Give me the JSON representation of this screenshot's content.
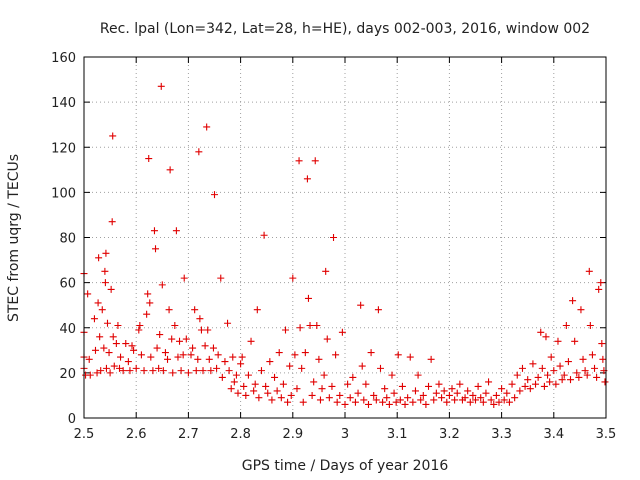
{
  "chart_data": {
    "type": "scatter",
    "title": "Rec. lpal (Lon=342, Lat=28, h=HE), days 002-003, 2016, window 002",
    "xlabel": "GPS time / Days of year 2016",
    "ylabel": "STEC from uqrg / TECUs",
    "xlim": [
      2.5,
      3.5
    ],
    "ylim": [
      0,
      160
    ],
    "x_ticks": [
      "2.5",
      "2.6",
      "2.7",
      "2.8",
      "2.9",
      "3",
      "3.1",
      "3.2",
      "3.3",
      "3.4",
      "3.5"
    ],
    "y_ticks": [
      "0",
      "20",
      "40",
      "60",
      "80",
      "100",
      "120",
      "140",
      "160"
    ],
    "grid": true,
    "marker": "+",
    "color": "#e00000",
    "series": [
      {
        "name": "STEC",
        "points": [
          [
            2.5,
            64
          ],
          [
            2.5,
            38
          ],
          [
            2.5,
            27
          ],
          [
            2.5,
            22
          ],
          [
            2.503,
            19
          ],
          [
            2.507,
            55
          ],
          [
            2.51,
            26
          ],
          [
            2.512,
            19
          ],
          [
            2.52,
            44
          ],
          [
            2.522,
            30
          ],
          [
            2.525,
            20
          ],
          [
            2.527,
            51
          ],
          [
            2.528,
            71
          ],
          [
            2.53,
            36
          ],
          [
            2.532,
            21
          ],
          [
            2.535,
            48
          ],
          [
            2.538,
            31
          ],
          [
            2.54,
            65
          ],
          [
            2.541,
            60
          ],
          [
            2.542,
            73
          ],
          [
            2.543,
            22
          ],
          [
            2.545,
            42
          ],
          [
            2.548,
            29
          ],
          [
            2.55,
            20
          ],
          [
            2.552,
            57
          ],
          [
            2.554,
            87
          ],
          [
            2.555,
            125
          ],
          [
            2.556,
            36
          ],
          [
            2.558,
            23
          ],
          [
            2.562,
            33
          ],
          [
            2.565,
            41
          ],
          [
            2.568,
            22
          ],
          [
            2.57,
            27
          ],
          [
            2.575,
            21
          ],
          [
            2.58,
            33
          ],
          [
            2.585,
            25
          ],
          [
            2.588,
            21
          ],
          [
            2.592,
            32
          ],
          [
            2.595,
            30
          ],
          [
            2.6,
            22
          ],
          [
            2.605,
            39
          ],
          [
            2.607,
            41
          ],
          [
            2.61,
            28
          ],
          [
            2.615,
            21
          ],
          [
            2.62,
            46
          ],
          [
            2.622,
            55
          ],
          [
            2.624,
            115
          ],
          [
            2.626,
            51
          ],
          [
            2.628,
            27
          ],
          [
            2.632,
            21
          ],
          [
            2.635,
            83
          ],
          [
            2.637,
            75
          ],
          [
            2.64,
            31
          ],
          [
            2.643,
            22
          ],
          [
            2.645,
            37
          ],
          [
            2.648,
            147
          ],
          [
            2.65,
            59
          ],
          [
            2.652,
            21
          ],
          [
            2.656,
            29
          ],
          [
            2.66,
            26
          ],
          [
            2.663,
            48
          ],
          [
            2.665,
            110
          ],
          [
            2.668,
            35
          ],
          [
            2.67,
            20
          ],
          [
            2.674,
            41
          ],
          [
            2.677,
            83
          ],
          [
            2.68,
            27
          ],
          [
            2.683,
            34
          ],
          [
            2.686,
            21
          ],
          [
            2.69,
            28
          ],
          [
            2.692,
            62
          ],
          [
            2.696,
            35
          ],
          [
            2.7,
            20
          ],
          [
            2.705,
            28
          ],
          [
            2.708,
            31
          ],
          [
            2.712,
            48
          ],
          [
            2.715,
            21
          ],
          [
            2.718,
            26
          ],
          [
            2.72,
            118
          ],
          [
            2.722,
            44
          ],
          [
            2.725,
            39
          ],
          [
            2.728,
            21
          ],
          [
            2.732,
            32
          ],
          [
            2.735,
            129
          ],
          [
            2.737,
            39
          ],
          [
            2.74,
            26
          ],
          [
            2.743,
            21
          ],
          [
            2.748,
            31
          ],
          [
            2.75,
            99
          ],
          [
            2.754,
            22
          ],
          [
            2.757,
            28
          ],
          [
            2.762,
            62
          ],
          [
            2.765,
            18
          ],
          [
            2.77,
            25
          ],
          [
            2.775,
            42
          ],
          [
            2.778,
            21
          ],
          [
            2.782,
            13
          ],
          [
            2.785,
            27
          ],
          [
            2.788,
            16
          ],
          [
            2.792,
            19
          ],
          [
            2.795,
            11
          ],
          [
            2.8,
            24
          ],
          [
            2.803,
            27
          ],
          [
            2.806,
            14
          ],
          [
            2.81,
            10
          ],
          [
            2.815,
            19
          ],
          [
            2.82,
            34
          ],
          [
            2.825,
            12
          ],
          [
            2.828,
            15
          ],
          [
            2.832,
            48
          ],
          [
            2.835,
            9
          ],
          [
            2.84,
            21
          ],
          [
            2.845,
            81
          ],
          [
            2.848,
            14
          ],
          [
            2.852,
            11
          ],
          [
            2.856,
            25
          ],
          [
            2.86,
            8
          ],
          [
            2.865,
            18
          ],
          [
            2.87,
            12
          ],
          [
            2.874,
            29
          ],
          [
            2.878,
            9
          ],
          [
            2.882,
            15
          ],
          [
            2.886,
            39
          ],
          [
            2.89,
            7
          ],
          [
            2.894,
            23
          ],
          [
            2.897,
            10
          ],
          [
            2.9,
            62
          ],
          [
            2.904,
            28
          ],
          [
            2.908,
            13
          ],
          [
            2.912,
            114
          ],
          [
            2.914,
            40
          ],
          [
            2.917,
            22
          ],
          [
            2.92,
            7
          ],
          [
            2.924,
            29
          ],
          [
            2.928,
            106
          ],
          [
            2.93,
            53
          ],
          [
            2.933,
            41
          ],
          [
            2.937,
            10
          ],
          [
            2.94,
            16
          ],
          [
            2.943,
            114
          ],
          [
            2.946,
            41
          ],
          [
            2.95,
            26
          ],
          [
            2.953,
            8
          ],
          [
            2.956,
            13
          ],
          [
            2.96,
            19
          ],
          [
            2.963,
            65
          ],
          [
            2.966,
            35
          ],
          [
            2.97,
            9
          ],
          [
            2.975,
            14
          ],
          [
            2.978,
            80
          ],
          [
            2.982,
            28
          ],
          [
            2.985,
            7
          ],
          [
            2.99,
            10
          ],
          [
            2.995,
            38
          ],
          [
            3.0,
            6
          ],
          [
            3.005,
            15
          ],
          [
            3.01,
            9
          ],
          [
            3.015,
            18
          ],
          [
            3.02,
            7
          ],
          [
            3.025,
            11
          ],
          [
            3.03,
            50
          ],
          [
            3.033,
            23
          ],
          [
            3.036,
            8
          ],
          [
            3.04,
            15
          ],
          [
            3.045,
            6
          ],
          [
            3.05,
            29
          ],
          [
            3.055,
            10
          ],
          [
            3.06,
            8
          ],
          [
            3.064,
            48
          ],
          [
            3.068,
            22
          ],
          [
            3.072,
            7
          ],
          [
            3.076,
            13
          ],
          [
            3.08,
            9
          ],
          [
            3.085,
            6
          ],
          [
            3.09,
            19
          ],
          [
            3.094,
            11
          ],
          [
            3.098,
            7
          ],
          [
            3.102,
            28
          ],
          [
            3.106,
            8
          ],
          [
            3.11,
            14
          ],
          [
            3.115,
            6
          ],
          [
            3.12,
            9
          ],
          [
            3.125,
            27
          ],
          [
            3.13,
            7
          ],
          [
            3.135,
            12
          ],
          [
            3.14,
            19
          ],
          [
            3.145,
            8
          ],
          [
            3.15,
            10
          ],
          [
            3.155,
            6
          ],
          [
            3.16,
            14
          ],
          [
            3.165,
            26
          ],
          [
            3.17,
            8
          ],
          [
            3.175,
            11
          ],
          [
            3.18,
            15
          ],
          [
            3.185,
            9
          ],
          [
            3.19,
            12
          ],
          [
            3.195,
            7
          ],
          [
            3.2,
            10
          ],
          [
            3.205,
            13
          ],
          [
            3.21,
            8
          ],
          [
            3.215,
            11
          ],
          [
            3.22,
            15
          ],
          [
            3.225,
            8
          ],
          [
            3.23,
            9
          ],
          [
            3.235,
            12
          ],
          [
            3.24,
            7
          ],
          [
            3.245,
            10
          ],
          [
            3.25,
            8
          ],
          [
            3.255,
            14
          ],
          [
            3.26,
            9
          ],
          [
            3.265,
            7
          ],
          [
            3.27,
            11
          ],
          [
            3.275,
            16
          ],
          [
            3.28,
            8
          ],
          [
            3.285,
            6
          ],
          [
            3.29,
            10
          ],
          [
            3.295,
            7
          ],
          [
            3.3,
            13
          ],
          [
            3.305,
            8
          ],
          [
            3.31,
            11
          ],
          [
            3.315,
            7
          ],
          [
            3.32,
            15
          ],
          [
            3.325,
            9
          ],
          [
            3.33,
            19
          ],
          [
            3.335,
            12
          ],
          [
            3.34,
            22
          ],
          [
            3.345,
            14
          ],
          [
            3.35,
            17
          ],
          [
            3.355,
            13
          ],
          [
            3.36,
            24
          ],
          [
            3.365,
            15
          ],
          [
            3.37,
            18
          ],
          [
            3.375,
            38
          ],
          [
            3.378,
            22
          ],
          [
            3.382,
            14
          ],
          [
            3.385,
            36
          ],
          [
            3.388,
            19
          ],
          [
            3.392,
            16
          ],
          [
            3.395,
            27
          ],
          [
            3.4,
            21
          ],
          [
            3.404,
            15
          ],
          [
            3.408,
            34
          ],
          [
            3.412,
            23
          ],
          [
            3.416,
            17
          ],
          [
            3.42,
            19
          ],
          [
            3.424,
            41
          ],
          [
            3.428,
            25
          ],
          [
            3.432,
            17
          ],
          [
            3.436,
            52
          ],
          [
            3.44,
            34
          ],
          [
            3.444,
            20
          ],
          [
            3.448,
            18
          ],
          [
            3.452,
            48
          ],
          [
            3.456,
            26
          ],
          [
            3.46,
            21
          ],
          [
            3.464,
            19
          ],
          [
            3.468,
            65
          ],
          [
            3.47,
            41
          ],
          [
            3.474,
            28
          ],
          [
            3.478,
            22
          ],
          [
            3.482,
            18
          ],
          [
            3.486,
            57
          ],
          [
            3.49,
            60
          ],
          [
            3.492,
            33
          ],
          [
            3.494,
            26
          ],
          [
            3.496,
            21
          ],
          [
            3.498,
            16
          ]
        ]
      }
    ]
  }
}
